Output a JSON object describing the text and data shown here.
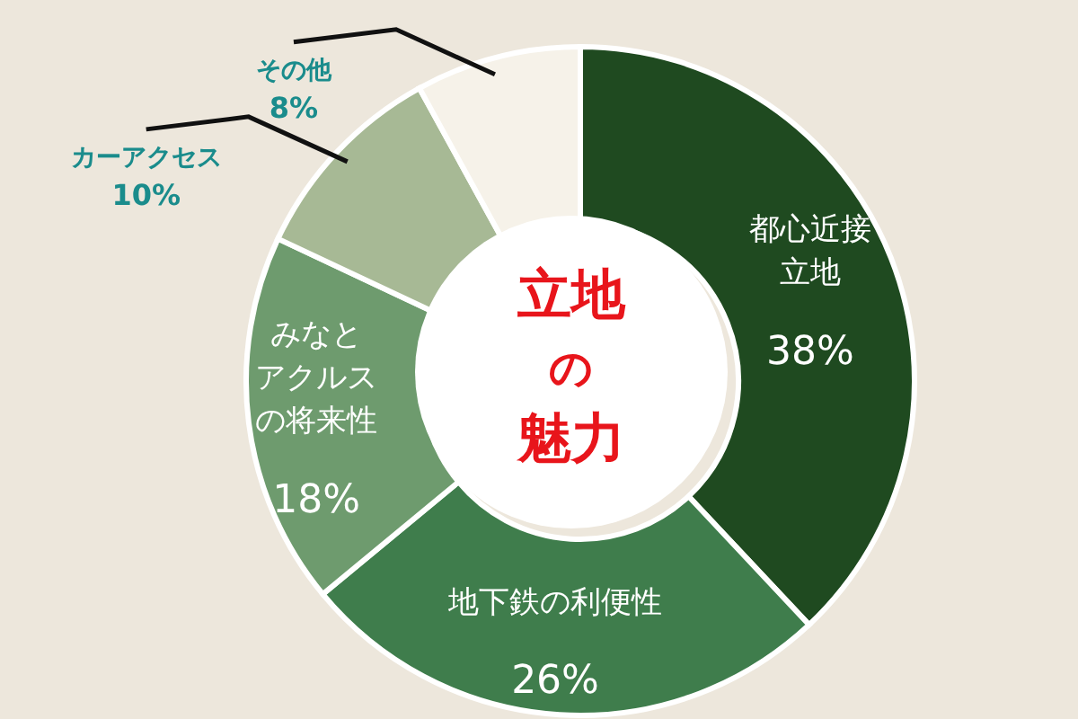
{
  "chart_data": {
    "type": "donut",
    "title": "立地の魅力",
    "categories": [
      "都心近接立地",
      "地下鉄の利便性",
      "みなとアクルスの将来性",
      "カーアクセス",
      "その他"
    ],
    "values": [
      38,
      26,
      18,
      10,
      8
    ],
    "value_labels": [
      "38%",
      "26%",
      "18%",
      "10%",
      "8%"
    ],
    "colors": [
      "#1f4a20",
      "#3f7d4c",
      "#6e9b6e",
      "#a7b995",
      "#f6f2e9"
    ],
    "legend": false
  }
}
